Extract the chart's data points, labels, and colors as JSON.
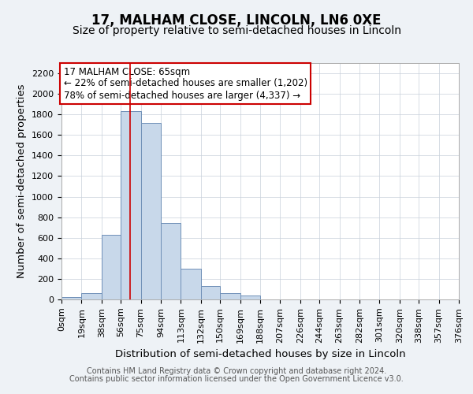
{
  "title": "17, MALHAM CLOSE, LINCOLN, LN6 0XE",
  "subtitle": "Size of property relative to semi-detached houses in Lincoln",
  "xlabel": "Distribution of semi-detached houses by size in Lincoln",
  "ylabel": "Number of semi-detached properties",
  "bin_labels": [
    "0sqm",
    "19sqm",
    "38sqm",
    "56sqm",
    "75sqm",
    "94sqm",
    "113sqm",
    "132sqm",
    "150sqm",
    "169sqm",
    "188sqm",
    "207sqm",
    "226sqm",
    "244sqm",
    "263sqm",
    "282sqm",
    "301sqm",
    "320sqm",
    "338sqm",
    "357sqm",
    "376sqm"
  ],
  "bin_edges": [
    0,
    19,
    38,
    56,
    75,
    94,
    113,
    132,
    150,
    169,
    188,
    207,
    226,
    244,
    263,
    282,
    301,
    320,
    338,
    357,
    376
  ],
  "bar_heights": [
    20,
    60,
    630,
    1830,
    1720,
    740,
    300,
    130,
    65,
    40,
    0,
    0,
    0,
    0,
    0,
    0,
    0,
    0,
    0,
    0
  ],
  "bar_color": "#c8d8ea",
  "bar_edge_color": "#7090b8",
  "property_line_x": 65,
  "property_line_color": "#cc0000",
  "annotation_line1": "17 MALHAM CLOSE: 65sqm",
  "annotation_line2": "← 22% of semi-detached houses are smaller (1,202)",
  "annotation_line3": "78% of semi-detached houses are larger (4,337) →",
  "annotation_box_color": "#ffffff",
  "annotation_box_edge_color": "#cc0000",
  "ylim": [
    0,
    2300
  ],
  "yticks": [
    0,
    200,
    400,
    600,
    800,
    1000,
    1200,
    1400,
    1600,
    1800,
    2000,
    2200
  ],
  "footer1": "Contains HM Land Registry data © Crown copyright and database right 2024.",
  "footer2": "Contains public sector information licensed under the Open Government Licence v3.0.",
  "background_color": "#eef2f6",
  "plot_background_color": "#ffffff",
  "grid_color": "#c8d0da",
  "title_fontsize": 12,
  "subtitle_fontsize": 10,
  "axis_label_fontsize": 9.5,
  "tick_fontsize": 8,
  "annotation_fontsize": 8.5,
  "footer_fontsize": 7
}
